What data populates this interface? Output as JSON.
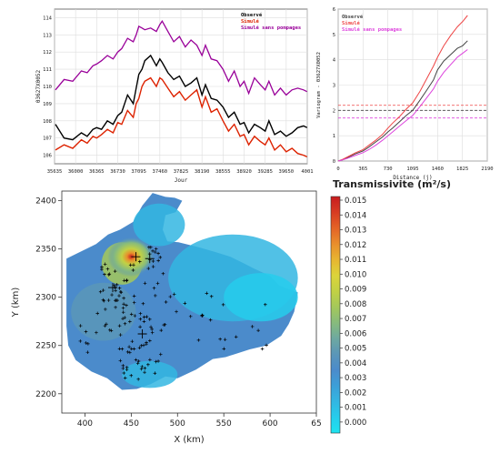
{
  "chart_data": [
    {
      "type": "line",
      "xlabel": "Jour",
      "ylabel": "03627X0052",
      "xlim": [
        35635,
        40015
      ],
      "ylim": [
        105.5,
        114.5
      ],
      "xticks": [
        "35635",
        "36000",
        "36365",
        "36730",
        "37095",
        "37460",
        "37825",
        "38190",
        "38555",
        "38920",
        "39285",
        "39650",
        "4001"
      ],
      "yticks": [
        "106",
        "107",
        "108",
        "109",
        "110",
        "111",
        "112",
        "113",
        "114"
      ],
      "legend_position": "top-right",
      "grid": true,
      "series": [
        {
          "name": "Observé",
          "color": "#000000",
          "x": [
            35650,
            35800,
            35950,
            36100,
            36200,
            36300,
            36365,
            36450,
            36550,
            36650,
            36730,
            36800,
            36900,
            37000,
            37050,
            37095,
            37150,
            37200,
            37300,
            37400,
            37460,
            37500,
            37600,
            37700,
            37800,
            37900,
            38000,
            38100,
            38190,
            38250,
            38350,
            38450,
            38555,
            38650,
            38750,
            38850,
            38920,
            39000,
            39100,
            39200,
            39285,
            39350,
            39450,
            39550,
            39650,
            39750,
            39850,
            39950,
            40010
          ],
          "values": [
            107.8,
            107.0,
            106.9,
            107.3,
            107.1,
            107.5,
            107.6,
            107.5,
            108.0,
            107.8,
            108.3,
            108.5,
            109.5,
            109.0,
            109.9,
            110.7,
            111.0,
            111.5,
            111.8,
            111.2,
            111.6,
            111.4,
            110.8,
            110.4,
            110.6,
            110.0,
            110.2,
            110.5,
            109.5,
            110.1,
            109.3,
            109.2,
            108.8,
            108.2,
            108.5,
            107.8,
            107.9,
            107.3,
            107.8,
            107.6,
            107.4,
            108.0,
            107.2,
            107.4,
            107.1,
            107.3,
            107.6,
            107.7,
            107.6
          ]
        },
        {
          "name": "Simulé",
          "color": "#dd2200",
          "x": [
            35650,
            35800,
            35950,
            36100,
            36200,
            36300,
            36365,
            36450,
            36550,
            36650,
            36730,
            36800,
            36900,
            37000,
            37050,
            37095,
            37150,
            37200,
            37300,
            37400,
            37460,
            37500,
            37600,
            37700,
            37800,
            37900,
            38000,
            38100,
            38190,
            38250,
            38350,
            38450,
            38555,
            38650,
            38750,
            38850,
            38920,
            39000,
            39100,
            39200,
            39285,
            39350,
            39450,
            39550,
            39650,
            39750,
            39850,
            39950,
            40010
          ],
          "values": [
            106.3,
            106.6,
            106.4,
            106.9,
            106.7,
            107.1,
            107.0,
            107.2,
            107.5,
            107.3,
            107.9,
            107.8,
            108.6,
            108.2,
            109.0,
            109.3,
            110.0,
            110.3,
            110.5,
            110.0,
            110.5,
            110.4,
            109.9,
            109.4,
            109.7,
            109.2,
            109.5,
            109.8,
            108.8,
            109.4,
            108.5,
            108.7,
            108.0,
            107.4,
            107.8,
            107.1,
            107.2,
            106.6,
            107.1,
            106.8,
            106.6,
            107.0,
            106.3,
            106.6,
            106.2,
            106.4,
            106.1,
            106.0,
            105.9
          ]
        },
        {
          "name": "Simulé sans pompages",
          "color": "#990099",
          "x": [
            35650,
            35800,
            35950,
            36100,
            36200,
            36300,
            36365,
            36450,
            36550,
            36650,
            36730,
            36800,
            36900,
            37000,
            37050,
            37095,
            37150,
            37200,
            37300,
            37400,
            37460,
            37500,
            37600,
            37700,
            37800,
            37900,
            38000,
            38100,
            38190,
            38250,
            38350,
            38450,
            38555,
            38650,
            38750,
            38850,
            38920,
            39000,
            39100,
            39200,
            39285,
            39350,
            39450,
            39550,
            39650,
            39750,
            39850,
            39950,
            40010
          ],
          "values": [
            109.8,
            110.4,
            110.3,
            110.9,
            110.8,
            111.2,
            111.3,
            111.5,
            111.8,
            111.6,
            112.0,
            112.2,
            112.8,
            112.6,
            113.0,
            113.5,
            113.4,
            113.3,
            113.4,
            113.2,
            113.6,
            113.8,
            113.2,
            112.6,
            112.9,
            112.3,
            112.7,
            112.4,
            111.8,
            112.4,
            111.6,
            111.5,
            111.0,
            110.3,
            110.9,
            110.0,
            110.3,
            109.6,
            110.5,
            110.1,
            109.8,
            110.3,
            109.5,
            109.9,
            109.5,
            109.8,
            109.9,
            109.8,
            109.7
          ]
        }
      ]
    },
    {
      "type": "line",
      "xlabel": "Distance (j)",
      "ylabel": "Variogram - 03627X0052",
      "xlim": [
        0,
        2190
      ],
      "ylim": [
        0,
        6
      ],
      "xticks": [
        "0",
        "365",
        "730",
        "1095",
        "1460",
        "1825",
        "2190"
      ],
      "yticks": [
        "0",
        "1",
        "2",
        "3",
        "4",
        "5",
        "6"
      ],
      "legend_position": "top-left",
      "grid": true,
      "series": [
        {
          "name": "Observé",
          "color": "#444444",
          "x": [
            0,
            60,
            150,
            250,
            365,
            450,
            550,
            650,
            730,
            800,
            900,
            1000,
            1095,
            1200,
            1300,
            1400,
            1460,
            1550,
            1650,
            1750,
            1825,
            1900
          ],
          "values": [
            0,
            0.05,
            0.15,
            0.28,
            0.4,
            0.55,
            0.75,
            0.95,
            1.15,
            1.3,
            1.55,
            1.8,
            2.0,
            2.4,
            2.8,
            3.2,
            3.6,
            3.95,
            4.2,
            4.45,
            4.55,
            4.75
          ],
          "sill": 2.0
        },
        {
          "name": "Simulé",
          "color": "#ee4444",
          "x": [
            0,
            60,
            150,
            250,
            365,
            450,
            550,
            650,
            730,
            800,
            900,
            1000,
            1095,
            1200,
            1300,
            1400,
            1460,
            1550,
            1650,
            1750,
            1825,
            1900
          ],
          "values": [
            0,
            0.06,
            0.18,
            0.32,
            0.45,
            0.62,
            0.82,
            1.05,
            1.3,
            1.5,
            1.75,
            2.05,
            2.3,
            2.75,
            3.25,
            3.75,
            4.1,
            4.55,
            4.95,
            5.3,
            5.5,
            5.75
          ],
          "sill": 2.2
        },
        {
          "name": "Simulé sans pompages",
          "color": "#dd44dd",
          "x": [
            0,
            60,
            150,
            250,
            365,
            450,
            550,
            650,
            730,
            800,
            900,
            1000,
            1095,
            1200,
            1300,
            1400,
            1460,
            1550,
            1650,
            1750,
            1825,
            1900
          ],
          "values": [
            0,
            0.04,
            0.12,
            0.22,
            0.33,
            0.45,
            0.62,
            0.82,
            1.0,
            1.15,
            1.38,
            1.6,
            1.8,
            2.15,
            2.5,
            2.85,
            3.15,
            3.5,
            3.8,
            4.1,
            4.25,
            4.4
          ],
          "sill": 1.7
        }
      ]
    },
    {
      "type": "heatmap",
      "xlabel": "X (km)",
      "ylabel": "Y (km)",
      "xlim": [
        375,
        650
      ],
      "ylim": [
        2180,
        2410
      ],
      "xticks": [
        "400",
        "450",
        "500",
        "550",
        "600",
        "65"
      ],
      "yticks": [
        "2200",
        "2250",
        "2300",
        "2350",
        "2400"
      ],
      "colorbar": {
        "title": "Transmissivite (m²/s)",
        "ticks": [
          "0.015",
          "0.014",
          "0.013",
          "0.012",
          "0.011",
          "0.010",
          "0.009",
          "0.008",
          "0.007",
          "0.006",
          "0.005",
          "0.004",
          "0.003",
          "0.002",
          "0.001",
          "0.000"
        ],
        "range": [
          0,
          0.0155
        ]
      },
      "wells": [
        [
          462,
          2262
        ],
        [
          470,
          2340
        ],
        [
          455,
          2342
        ],
        [
          430,
          2310
        ]
      ]
    }
  ]
}
